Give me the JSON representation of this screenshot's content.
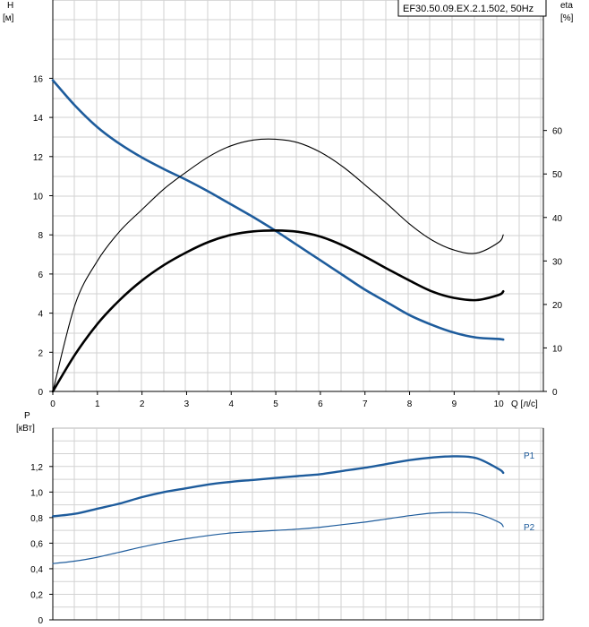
{
  "chart_data": [
    {
      "type": "line",
      "model_label": "EF30.50.09.EX.2.1.502, 50Hz",
      "ylabel": "H",
      "ylabel_unit": "[м]",
      "y2label": "eta",
      "y2label_unit": "[%]",
      "xlabel": "Q [л/с]",
      "xlim": [
        0,
        11
      ],
      "ylim": [
        0,
        20
      ],
      "y2lim": [
        0,
        90
      ],
      "grid": true,
      "x_ticks": [
        "0",
        "1",
        "2",
        "3",
        "4",
        "5",
        "6",
        "7",
        "8",
        "9",
        "10"
      ],
      "y_ticks": [
        "0",
        "2",
        "4",
        "6",
        "8",
        "10",
        "12",
        "14",
        "16"
      ],
      "y2_ticks": [
        "0",
        "10",
        "20",
        "30",
        "40",
        "50",
        "60"
      ],
      "series": [
        {
          "key": "H",
          "axis": "left",
          "color": "#1e5c9c",
          "x": [
            0,
            0.5,
            1,
            1.5,
            2,
            2.5,
            3,
            3.5,
            4,
            4.5,
            5,
            5.5,
            6,
            6.5,
            7,
            7.5,
            8,
            8.5,
            9,
            9.5,
            10,
            10.1
          ],
          "values": [
            15.9,
            14.6,
            13.5,
            12.65,
            11.95,
            11.35,
            10.8,
            10.2,
            9.55,
            8.9,
            8.2,
            7.45,
            6.7,
            5.95,
            5.2,
            4.55,
            3.9,
            3.4,
            3.0,
            2.75,
            2.68,
            2.65
          ]
        },
        {
          "key": "eta_total",
          "axis": "right",
          "color": "#000000",
          "x": [
            0,
            0.5,
            1,
            1.5,
            2,
            2.5,
            3,
            3.5,
            4,
            4.5,
            5,
            5.5,
            6,
            6.5,
            7,
            7.5,
            8,
            8.5,
            9,
            9.5,
            10,
            10.1
          ],
          "values": [
            0,
            8.5,
            15.5,
            21,
            25.5,
            29.1,
            32,
            34.4,
            36,
            36.8,
            37,
            36.7,
            35.6,
            33.6,
            31,
            28.2,
            25.5,
            23,
            21.5,
            21,
            22.2,
            23
          ]
        },
        {
          "key": "eta_hydraulic",
          "axis": "right",
          "color": "#000000",
          "x": [
            0,
            0.5,
            1,
            1.5,
            2,
            2.5,
            3,
            3.5,
            4,
            4.5,
            5,
            5.5,
            6,
            6.5,
            7,
            7.5,
            8,
            8.5,
            9,
            9.5,
            10,
            10.1
          ],
          "values": [
            0,
            20,
            30,
            36.8,
            41.8,
            46.6,
            50.5,
            54,
            56.5,
            57.8,
            58,
            57.2,
            55,
            51.7,
            47.5,
            43.1,
            38.5,
            34.8,
            32.5,
            31.8,
            34.3,
            36
          ]
        }
      ]
    },
    {
      "type": "line",
      "ylabel": "P",
      "ylabel_unit": "[кВт]",
      "xlim": [
        0,
        11
      ],
      "ylim": [
        0,
        1.5
      ],
      "grid": true,
      "y_ticks": [
        "0",
        "0,2",
        "0,4",
        "0,6",
        "0,8",
        "1,0",
        "1,2"
      ],
      "series": [
        {
          "name": "P1",
          "color": "#1e5c9c",
          "x": [
            0,
            0.5,
            1,
            1.5,
            2,
            2.5,
            3,
            3.5,
            4,
            4.5,
            5,
            5.5,
            6,
            6.5,
            7,
            7.5,
            8,
            8.5,
            9,
            9.5,
            10,
            10.1
          ],
          "values": [
            0.81,
            0.83,
            0.87,
            0.91,
            0.96,
            1.0,
            1.03,
            1.06,
            1.08,
            1.095,
            1.11,
            1.125,
            1.14,
            1.165,
            1.19,
            1.22,
            1.25,
            1.27,
            1.28,
            1.265,
            1.18,
            1.15
          ]
        },
        {
          "name": "P2",
          "color": "#1e5c9c",
          "x": [
            0,
            0.5,
            1,
            1.5,
            2,
            2.5,
            3,
            3.5,
            4,
            4.5,
            5,
            5.5,
            6,
            6.5,
            7,
            7.5,
            8,
            8.5,
            9,
            9.5,
            10,
            10.1
          ],
          "values": [
            0.44,
            0.46,
            0.49,
            0.53,
            0.57,
            0.605,
            0.635,
            0.66,
            0.68,
            0.69,
            0.7,
            0.71,
            0.725,
            0.745,
            0.765,
            0.79,
            0.815,
            0.835,
            0.84,
            0.83,
            0.765,
            0.73
          ]
        }
      ]
    }
  ]
}
